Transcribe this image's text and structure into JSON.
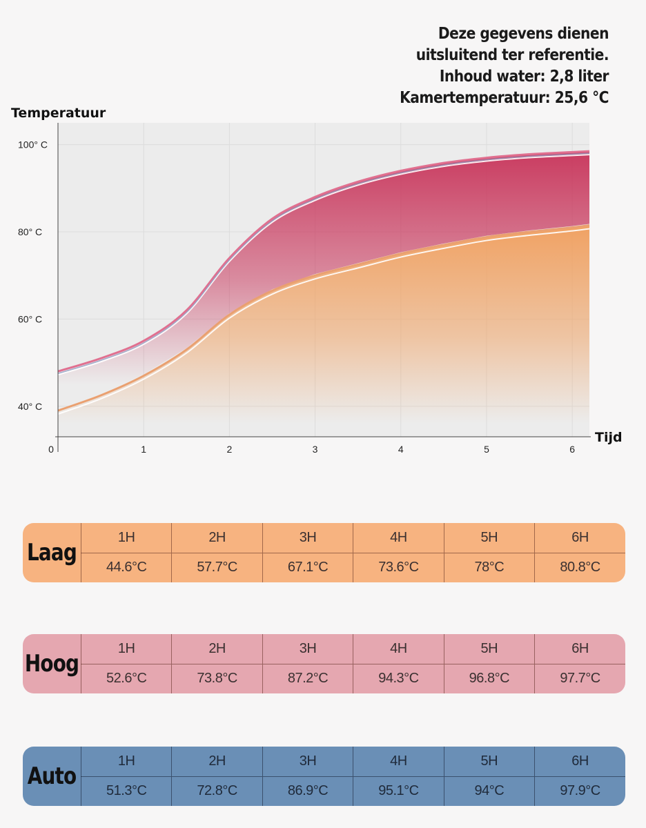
{
  "note": {
    "lines": [
      "Deze gegevens dienen",
      "uitsluitend ter referentie.",
      "Inhoud water: 2,8 liter",
      "Kamertemperatuur: 25,6 °C"
    ]
  },
  "chart_data": {
    "type": "area",
    "ylabel": "Temperatuur",
    "xlabel": "Tijd",
    "xlim": [
      0,
      6.2
    ],
    "ylim": [
      33,
      105
    ],
    "x_ticks": [
      "0",
      "1",
      "2",
      "3",
      "4",
      "5",
      "6"
    ],
    "x_tick_values": [
      0,
      1,
      2,
      3,
      4,
      5,
      6
    ],
    "y_ticks": [
      "40° C",
      "60° C",
      "80° C",
      "100° C"
    ],
    "y_tick_values": [
      40,
      60,
      80,
      100
    ],
    "grid": true,
    "colors": {
      "high": "#c8345a",
      "high_line": "#e07090",
      "low": "#f0a060",
      "low_line": "#eaa070"
    },
    "series": [
      {
        "key": "high",
        "x": [
          0,
          0.5,
          1,
          1.5,
          2,
          2.5,
          3,
          3.5,
          4,
          4.5,
          5,
          5.5,
          6,
          6.2
        ],
        "values": [
          48,
          51,
          55,
          62,
          74,
          83,
          88,
          91.5,
          94,
          95.8,
          97,
          97.8,
          98.3,
          98.5
        ]
      },
      {
        "key": "low",
        "x": [
          0,
          0.5,
          1,
          1.5,
          2,
          2.5,
          3,
          3.5,
          4,
          4.5,
          5,
          5.5,
          6,
          6.2
        ],
        "values": [
          39,
          42.5,
          47,
          53,
          61,
          66.5,
          70,
          72.5,
          75,
          77,
          78.8,
          80,
          81,
          81.5
        ]
      }
    ]
  },
  "tables": [
    {
      "id": "laag",
      "mode": "Laag",
      "hours": [
        "1H",
        "2H",
        "3H",
        "4H",
        "5H",
        "6H"
      ],
      "temps": [
        "44.6°C",
        "57.7°C",
        "67.1°C",
        "73.6°C",
        "78°C",
        "80.8°C"
      ],
      "color": "#f7b380"
    },
    {
      "id": "hoog",
      "mode": "Hoog",
      "hours": [
        "1H",
        "2H",
        "3H",
        "4H",
        "5H",
        "6H"
      ],
      "temps": [
        "52.6°C",
        "73.8°C",
        "87.2°C",
        "94.3°C",
        "96.8°C",
        "97.7°C"
      ],
      "color": "#e5a7b0"
    },
    {
      "id": "auto",
      "mode": "Auto",
      "hours": [
        "1H",
        "2H",
        "3H",
        "4H",
        "5H",
        "6H"
      ],
      "temps": [
        "51.3°C",
        "72.8°C",
        "86.9°C",
        "95.1°C",
        "94°C",
        "97.9°C"
      ],
      "color": "#6a8fb6"
    }
  ]
}
